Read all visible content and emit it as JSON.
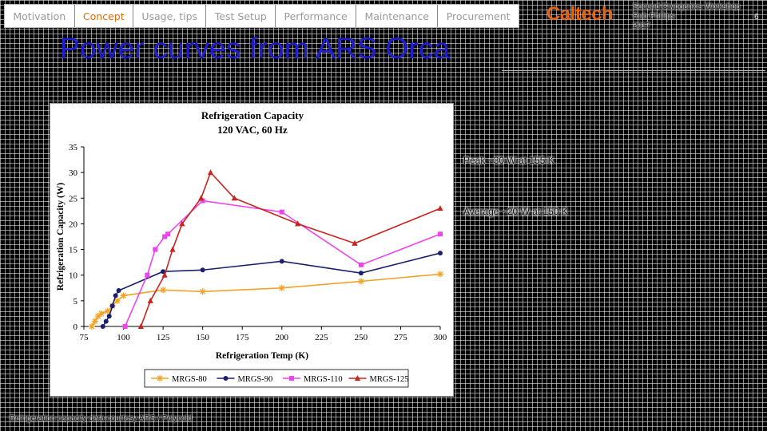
{
  "nav": {
    "tabs": [
      {
        "label": "Motivation",
        "active": false
      },
      {
        "label": "Concept",
        "active": true
      },
      {
        "label": "Usage, tips",
        "active": false
      },
      {
        "label": "Test Setup",
        "active": false
      },
      {
        "label": "Performance",
        "active": false
      },
      {
        "label": "Maintenance",
        "active": false
      },
      {
        "label": "Procurement",
        "active": false
      }
    ]
  },
  "header": {
    "logo": "Caltech",
    "info_line1": "Second Cryogenics Workshop",
    "info_line2": "Rob Phillips",
    "info_line3": "2017",
    "page_number": "6"
  },
  "title": "Power curves from ARS Orca",
  "notes": {
    "note1": "Peak ~30 W at 155 K",
    "note2": "Average ~20 W at 150 K"
  },
  "footer": "Refrigeration capacity data courtesy ARS / Polycold",
  "colors": {
    "title": "#1f1fd0",
    "active_tab": "#e36c0a",
    "logo": "#e8640c"
  },
  "chart_data": {
    "type": "line",
    "title": "Refrigeration Capacity",
    "subtitle": "120 VAC, 60 Hz",
    "xlabel": "Refrigeration Temp (K)",
    "ylabel": "Refrigeration Capacity (W)",
    "xlim": [
      75,
      300
    ],
    "ylim": [
      0,
      35
    ],
    "xticks": [
      75,
      100,
      125,
      150,
      175,
      200,
      225,
      250,
      275,
      300
    ],
    "yticks": [
      0,
      5,
      10,
      15,
      20,
      25,
      30,
      35
    ],
    "grid": false,
    "legend": "bottom",
    "series": [
      {
        "name": "MRGS-80",
        "color": "#f0a32a",
        "marker": "star",
        "x": [
          80,
          82,
          84,
          86,
          90,
          93,
          96,
          100,
          125,
          150,
          200,
          250,
          300
        ],
        "y": [
          0,
          1,
          2,
          2.5,
          3,
          4,
          5,
          6,
          7.1,
          6.8,
          7.5,
          8.8,
          10.2
        ]
      },
      {
        "name": "MRGS-90",
        "color": "#1a1f6e",
        "marker": "circle",
        "x": [
          87,
          89,
          91,
          93,
          95,
          97,
          125,
          150,
          200,
          250,
          300
        ],
        "y": [
          0,
          1,
          2,
          4,
          6,
          7,
          10.7,
          11,
          12.7,
          10.4,
          14.3
        ]
      },
      {
        "name": "MRGS-110",
        "color": "#ee44ee",
        "marker": "square",
        "x": [
          101,
          115,
          120,
          126,
          128,
          150,
          200,
          250,
          300
        ],
        "y": [
          0,
          10,
          15,
          17.5,
          18,
          24.5,
          22.3,
          12,
          18
        ]
      },
      {
        "name": "MRGS-125",
        "color": "#c8231e",
        "marker": "triangle",
        "x": [
          111,
          117,
          126,
          131,
          137,
          149,
          155,
          170,
          210,
          246,
          300
        ],
        "y": [
          0,
          5,
          10,
          15,
          20,
          25,
          30,
          25,
          20,
          16.2,
          23
        ]
      }
    ]
  }
}
